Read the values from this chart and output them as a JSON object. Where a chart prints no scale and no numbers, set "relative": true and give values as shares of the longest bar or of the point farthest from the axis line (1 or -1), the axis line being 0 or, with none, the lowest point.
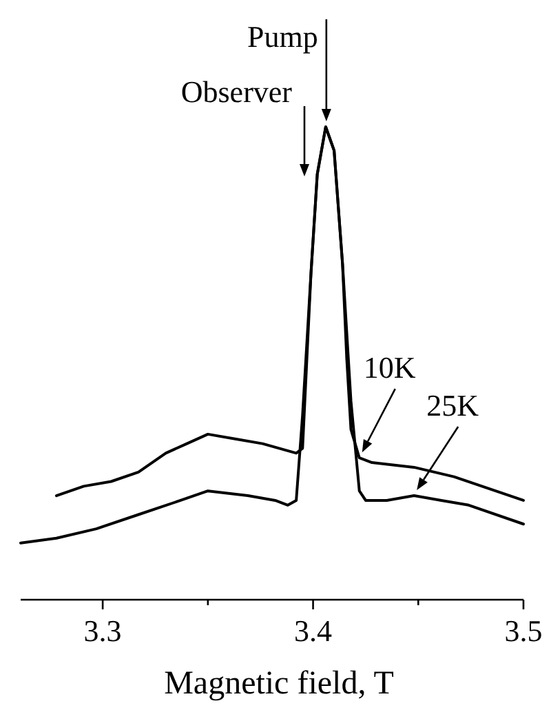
{
  "chart_data": {
    "type": "line",
    "relative": true,
    "xlabel": "Magnetic field, T",
    "xlim": [
      3.261,
      3.5
    ],
    "xticks": [
      3.3,
      {
        "value": 3.35,
        "label": null
      },
      3.4,
      {
        "value": 3.45,
        "label": null
      },
      3.5
    ],
    "grid": false,
    "line_style": "solid",
    "annotations": [
      {
        "text": "Pump",
        "x": 3.405,
        "y": 1
      },
      "Observer"
    ],
    "series": [
      {
        "name": "10K",
        "color": "#000000",
        "x": [
          3.278,
          3.291,
          3.304,
          3.317,
          3.33,
          3.34,
          3.35,
          3.363,
          3.376,
          3.392,
          3.395,
          3.399,
          3.402,
          3.406,
          3.41,
          3.414,
          3.416,
          3.418,
          3.422,
          3.428,
          3.448,
          3.467,
          3.5
        ],
        "values": [
          0.22,
          0.24,
          0.25,
          0.27,
          0.31,
          0.33,
          0.35,
          0.34,
          0.33,
          0.31,
          0.32,
          0.69,
          0.9,
          1.0,
          0.95,
          0.71,
          0.51,
          0.36,
          0.3,
          0.29,
          0.28,
          0.26,
          0.21
        ]
      },
      {
        "name": "25K",
        "color": "#000000",
        "x": [
          3.261,
          3.278,
          3.297,
          3.317,
          3.337,
          3.35,
          3.369,
          3.382,
          3.388,
          3.392,
          3.395,
          3.399,
          3.402,
          3.406,
          3.41,
          3.414,
          3.418,
          3.422,
          3.425,
          3.435,
          3.448,
          3.461,
          3.474,
          3.5
        ],
        "values": [
          0.12,
          0.13,
          0.15,
          0.18,
          0.21,
          0.23,
          0.22,
          0.21,
          0.2,
          0.21,
          0.39,
          0.69,
          0.9,
          1.0,
          0.95,
          0.71,
          0.42,
          0.23,
          0.21,
          0.21,
          0.22,
          0.21,
          0.2,
          0.16
        ]
      }
    ]
  }
}
